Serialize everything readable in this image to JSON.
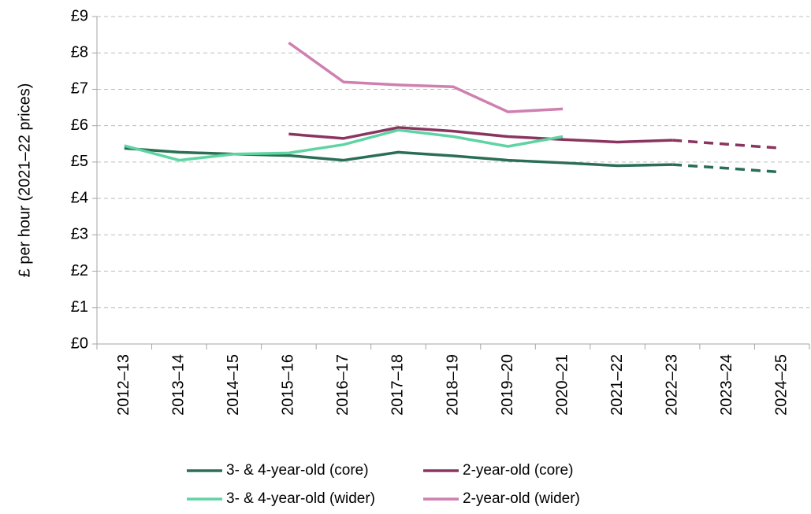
{
  "chart_data": {
    "type": "line",
    "y_label": "£ per hour (2021–22 prices)",
    "categories": [
      "2012–13",
      "2013–14",
      "2014–15",
      "2015–16",
      "2016–17",
      "2017–18",
      "2018–19",
      "2019–20",
      "2020–21",
      "2021–22",
      "2022–23",
      "2023–24",
      "2024–25"
    ],
    "series": [
      {
        "name": "3- & 4-year-old (core)",
        "color": "#2a6e55",
        "dashed_from": 10,
        "values": [
          5.38,
          5.27,
          5.22,
          5.18,
          5.05,
          5.27,
          5.17,
          5.05,
          4.98,
          4.9,
          4.93,
          4.83,
          4.72
        ]
      },
      {
        "name": "2-year-old (core)",
        "color": "#8a3560",
        "dashed_from": 10,
        "values": [
          null,
          null,
          null,
          5.77,
          5.65,
          5.95,
          5.85,
          5.7,
          5.62,
          5.55,
          5.6,
          5.49,
          5.38
        ]
      },
      {
        "name": "3- & 4-year-old (wider)",
        "color": "#5fd4a3",
        "values": [
          5.45,
          5.05,
          5.22,
          5.25,
          5.48,
          5.88,
          5.7,
          5.43,
          5.7,
          null,
          null,
          null,
          null
        ]
      },
      {
        "name": "2-year-old (wider)",
        "color": "#cf7fb0",
        "values": [
          null,
          null,
          null,
          8.28,
          7.2,
          7.12,
          7.07,
          6.38,
          6.46,
          null,
          null,
          null,
          null
        ]
      }
    ],
    "ylim": [
      0,
      9
    ],
    "yticks": [
      {
        "value": 0,
        "label": "£0"
      },
      {
        "value": 1,
        "label": "£1"
      },
      {
        "value": 2,
        "label": "£2"
      },
      {
        "value": 3,
        "label": "£3"
      },
      {
        "value": 4,
        "label": "£4"
      },
      {
        "value": 5,
        "label": "£5"
      },
      {
        "value": 6,
        "label": "£6"
      },
      {
        "value": 7,
        "label": "£7"
      },
      {
        "value": 8,
        "label": "£8"
      },
      {
        "value": 9,
        "label": "£9"
      }
    ],
    "grid": true
  }
}
